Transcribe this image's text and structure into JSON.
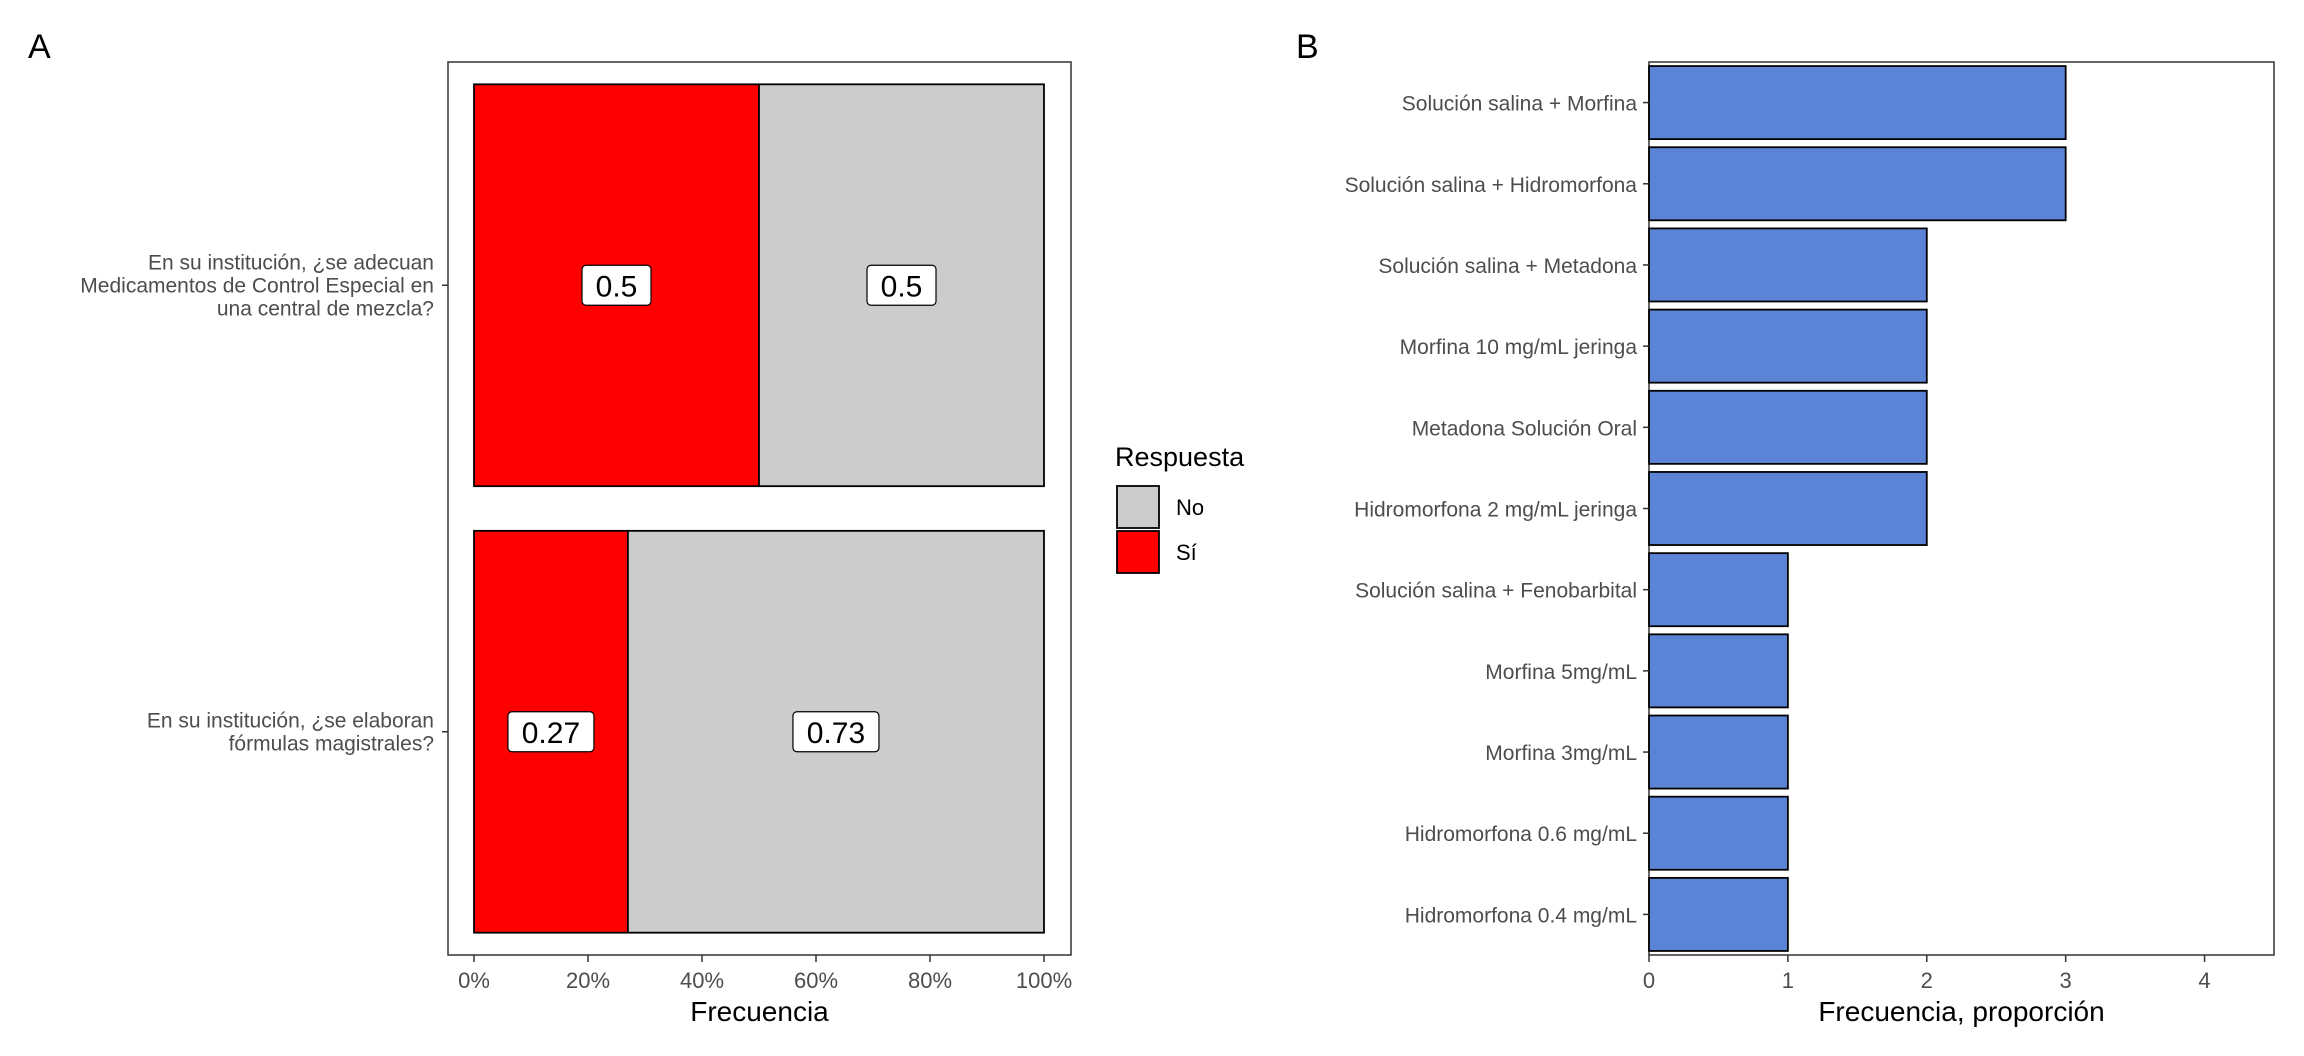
{
  "chart_data": [
    {
      "panel": "A",
      "type": "bar",
      "orientation": "horizontal",
      "stacked": "percent",
      "categories": [
        "En su institución, ¿se adecuan Medicamentos de Control Especial en una central de mezcla?",
        "En su institución, ¿se elaboran fórmulas magistrales?"
      ],
      "category_lines": [
        [
          "En su institución, ¿se adecuan",
          "Medicamentos de Control Especial en",
          "una central de mezcla?"
        ],
        [
          "En su institución, ¿se elaboran",
          "fórmulas magistrales?"
        ]
      ],
      "series": [
        {
          "name": "Sí",
          "color": "#ff0000",
          "values": [
            0.5,
            0.27
          ],
          "labels": [
            "0.5",
            "0.27"
          ]
        },
        {
          "name": "No",
          "color": "#cccccc",
          "values": [
            0.5,
            0.73
          ],
          "labels": [
            "0.5",
            "0.73"
          ]
        }
      ],
      "xlabel": "Frecuencia",
      "ylabel": "",
      "xlim": [
        0,
        1
      ],
      "xticks": [
        0,
        0.2,
        0.4,
        0.6,
        0.8,
        1.0
      ],
      "xtick_labels": [
        "0%",
        "20%",
        "40%",
        "60%",
        "80%",
        "100%"
      ],
      "legend": {
        "title": "Respuesta",
        "placement": "right",
        "items": [
          {
            "name": "No",
            "color": "#cccccc"
          },
          {
            "name": "Sí",
            "color": "#ff0000"
          }
        ]
      },
      "grid": false
    },
    {
      "panel": "B",
      "type": "bar",
      "orientation": "horizontal",
      "categories": [
        "Solución salina + Morfina",
        "Solución salina + Hidromorfona",
        "Solución salina + Metadona",
        "Morfina 10 mg/mL jeringa",
        "Metadona Solución Oral",
        "Hidromorfona 2 mg/mL jeringa",
        "Solución salina + Fenobarbital",
        "Morfina 5mg/mL",
        "Morfina 3mg/mL",
        "Hidromorfona 0.6 mg/mL",
        "Hidromorfona 0.4 mg/mL"
      ],
      "values": [
        3,
        3,
        2,
        2,
        2,
        2,
        1,
        1,
        1,
        1,
        1
      ],
      "color": "#5b84d6",
      "xlabel": "Frecuencia, proporción",
      "ylabel": "",
      "xlim": [
        0,
        4.5
      ],
      "xticks": [
        0,
        1,
        2,
        3,
        4
      ],
      "xtick_labels": [
        "0",
        "1",
        "2",
        "3",
        "4"
      ],
      "grid": false
    }
  ]
}
